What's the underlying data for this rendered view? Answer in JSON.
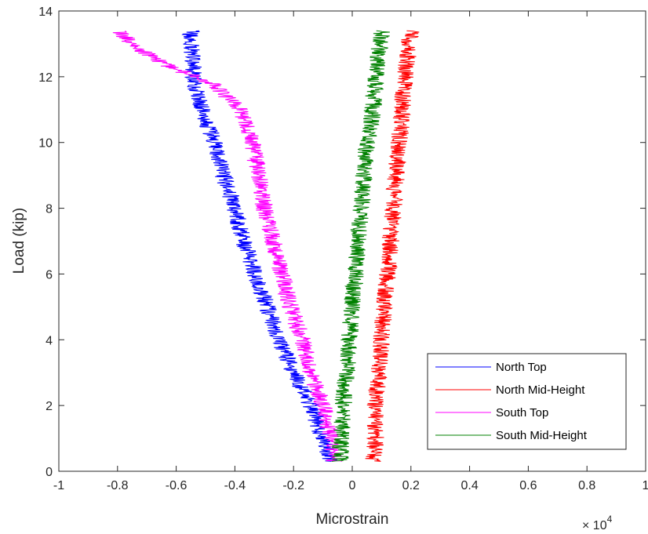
{
  "chart_data": {
    "type": "line",
    "xlabel": "Microstrain",
    "ylabel": "Load (kip)",
    "x_multiplier_base": "× 10",
    "x_multiplier_exp": "4",
    "xlim": [
      -1,
      1
    ],
    "ylim": [
      0,
      14
    ],
    "x_ticks": [
      -1,
      -0.8,
      -0.6,
      -0.4,
      -0.2,
      0,
      0.2,
      0.4,
      0.6,
      0.8,
      1
    ],
    "x_tick_labels": [
      "-1",
      "-0.8",
      "-0.6",
      "-0.4",
      "-0.2",
      "0",
      "0.2",
      "0.4",
      "0.6",
      "0.8",
      "1"
    ],
    "y_ticks": [
      0,
      2,
      4,
      6,
      8,
      10,
      12,
      14
    ],
    "y_tick_labels": [
      "0",
      "2",
      "4",
      "6",
      "8",
      "10",
      "12",
      "14"
    ],
    "grid": false,
    "legend_position": "bottom-right",
    "series": [
      {
        "name": "North Top",
        "color": "#0000ff",
        "noise": 0.03,
        "points": [
          [
            -0.08,
            0.3
          ],
          [
            -0.1,
            1
          ],
          [
            -0.14,
            2
          ],
          [
            -0.2,
            3
          ],
          [
            -0.25,
            4
          ],
          [
            -0.29,
            5
          ],
          [
            -0.33,
            6
          ],
          [
            -0.37,
            7
          ],
          [
            -0.4,
            8
          ],
          [
            -0.44,
            9
          ],
          [
            -0.47,
            10
          ],
          [
            -0.51,
            11
          ],
          [
            -0.54,
            12
          ],
          [
            -0.55,
            13.4
          ]
        ]
      },
      {
        "name": "North Mid-Height",
        "color": "#ff0000",
        "noise": 0.03,
        "points": [
          [
            0.07,
            0.3
          ],
          [
            0.08,
            1
          ],
          [
            0.08,
            2
          ],
          [
            0.09,
            3
          ],
          [
            0.1,
            4
          ],
          [
            0.11,
            5
          ],
          [
            0.12,
            6
          ],
          [
            0.13,
            7
          ],
          [
            0.14,
            8
          ],
          [
            0.15,
            9
          ],
          [
            0.16,
            10
          ],
          [
            0.17,
            11
          ],
          [
            0.18,
            12
          ],
          [
            0.2,
            13.4
          ]
        ]
      },
      {
        "name": "South Top",
        "color": "#ff00ff",
        "noise": 0.03,
        "points": [
          [
            -0.06,
            0.3
          ],
          [
            -0.07,
            1
          ],
          [
            -0.1,
            2
          ],
          [
            -0.14,
            3
          ],
          [
            -0.17,
            4
          ],
          [
            -0.21,
            5
          ],
          [
            -0.24,
            6
          ],
          [
            -0.27,
            7
          ],
          [
            -0.3,
            8
          ],
          [
            -0.32,
            9
          ],
          [
            -0.34,
            10
          ],
          [
            -0.38,
            11
          ],
          [
            -0.48,
            11.8
          ],
          [
            -0.62,
            12.3
          ],
          [
            -0.72,
            12.8
          ],
          [
            -0.8,
            13.4
          ]
        ]
      },
      {
        "name": "South Mid-Height",
        "color": "#008000",
        "noise": 0.03,
        "points": [
          [
            -0.04,
            0.3
          ],
          [
            -0.04,
            1
          ],
          [
            -0.03,
            2
          ],
          [
            -0.02,
            3
          ],
          [
            -0.01,
            4
          ],
          [
            0,
            5
          ],
          [
            0.01,
            6
          ],
          [
            0.02,
            7
          ],
          [
            0.03,
            8
          ],
          [
            0.04,
            9
          ],
          [
            0.05,
            10
          ],
          [
            0.07,
            11
          ],
          [
            0.08,
            12
          ],
          [
            0.1,
            13.4
          ]
        ]
      }
    ]
  }
}
